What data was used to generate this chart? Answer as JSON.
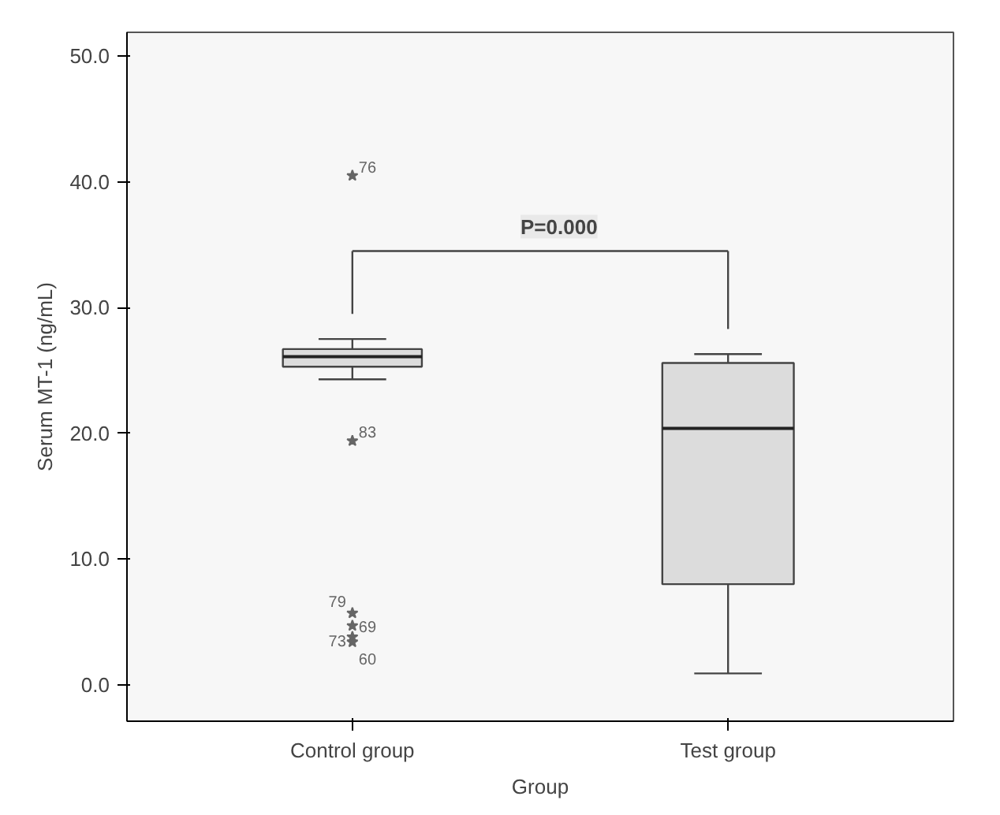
{
  "chart_data": {
    "type": "box",
    "xlabel": "Group",
    "ylabel": "Serum MT-1 (ng/mL)",
    "categories": [
      "Control group",
      "Test group"
    ],
    "series": [
      {
        "color": "#dcdcdc",
        "boxes": [
          {
            "low": 24.3,
            "q1": 25.3,
            "median": 26.1,
            "q3": 26.7,
            "high": 27.5,
            "outliers": [
              40.5,
              19.4,
              5.7,
              4.7,
              3.8,
              3.4
            ]
          },
          {
            "low": 0.9,
            "q1": 8.0,
            "median": 20.4,
            "q3": 25.6,
            "high": 26.3
          }
        ]
      }
    ],
    "marker": "star",
    "ylim": [
      -2.9,
      51.9
    ],
    "yticks": [
      {
        "value": 0,
        "label": "0.0"
      },
      {
        "value": 10,
        "label": "10.0"
      },
      {
        "value": 20,
        "label": "20.0"
      },
      {
        "value": 30,
        "label": "30.0"
      },
      {
        "value": 40,
        "label": "40.0"
      },
      {
        "value": 50,
        "label": "50.0"
      }
    ],
    "grid": false,
    "annotations": [
      "P=0.000",
      "76",
      "83",
      "79",
      "69",
      "73",
      "60"
    ]
  }
}
